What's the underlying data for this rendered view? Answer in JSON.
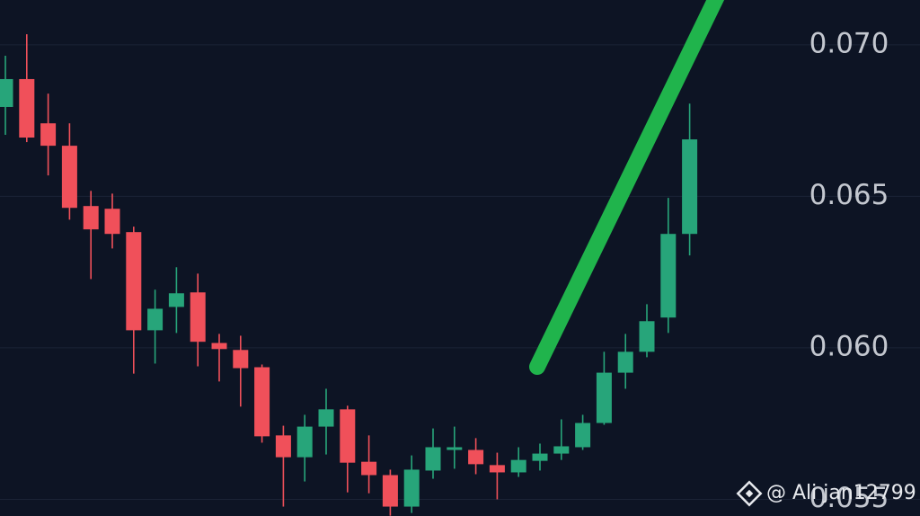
{
  "chart_data": {
    "type": "candlestick",
    "up_color": "#27a57a",
    "down_color": "#f0505a",
    "grid": true,
    "ylim": [
      0.05445,
      0.07148
    ],
    "yticks": [
      {
        "value": 0.07,
        "label": "0.070"
      },
      {
        "value": 0.065,
        "label": "0.065"
      },
      {
        "value": 0.06,
        "label": "0.060"
      },
      {
        "value": 0.055,
        "label": "0.055"
      }
    ],
    "open": [
      0.06795,
      0.06887,
      0.06741,
      0.06667,
      0.06468,
      0.06459,
      0.06382,
      0.06058,
      0.06135,
      0.06183,
      0.06016,
      0.05993,
      0.05936,
      0.05711,
      0.05639,
      0.0574,
      0.05797,
      0.05624,
      0.0558,
      0.05476,
      0.05595,
      0.05663,
      0.05663,
      0.05613,
      0.05589,
      0.05627,
      0.05651,
      0.05672,
      0.05752,
      0.05918,
      0.05987,
      0.061,
      0.06376
    ],
    "high": [
      0.06964,
      0.07035,
      0.06839,
      0.06741,
      0.06518,
      0.06509,
      0.064,
      0.06192,
      0.06266,
      0.06245,
      0.06046,
      0.0604,
      0.05945,
      0.05743,
      0.05779,
      0.05865,
      0.05809,
      0.05711,
      0.05598,
      0.05645,
      0.05734,
      0.0574,
      0.05702,
      0.05654,
      0.05672,
      0.05684,
      0.05764,
      0.05779,
      0.05987,
      0.06046,
      0.06144,
      0.06495,
      0.06806
    ],
    "low": [
      0.06703,
      0.06679,
      0.06569,
      0.06423,
      0.06227,
      0.06328,
      0.05915,
      0.05948,
      0.06049,
      0.05939,
      0.05889,
      0.05806,
      0.05687,
      0.05476,
      0.05559,
      0.05648,
      0.05523,
      0.0552,
      0.05446,
      0.05455,
      0.05568,
      0.05601,
      0.05583,
      0.055,
      0.05574,
      0.05595,
      0.0563,
      0.05663,
      0.05746,
      0.05865,
      0.05969,
      0.06049,
      0.06305
    ],
    "close": [
      0.06887,
      0.06694,
      0.06667,
      0.06462,
      0.06391,
      0.06376,
      0.06058,
      0.06129,
      0.0618,
      0.0602,
      0.05996,
      0.05933,
      0.05708,
      0.05639,
      0.0574,
      0.05797,
      0.05621,
      0.0558,
      0.05476,
      0.05598,
      0.05672,
      0.05672,
      0.05616,
      0.05589,
      0.0563,
      0.05651,
      0.05675,
      0.05752,
      0.05918,
      0.05987,
      0.06088,
      0.06376,
      0.06688
    ],
    "watermark": "@ Ali jan12799"
  }
}
